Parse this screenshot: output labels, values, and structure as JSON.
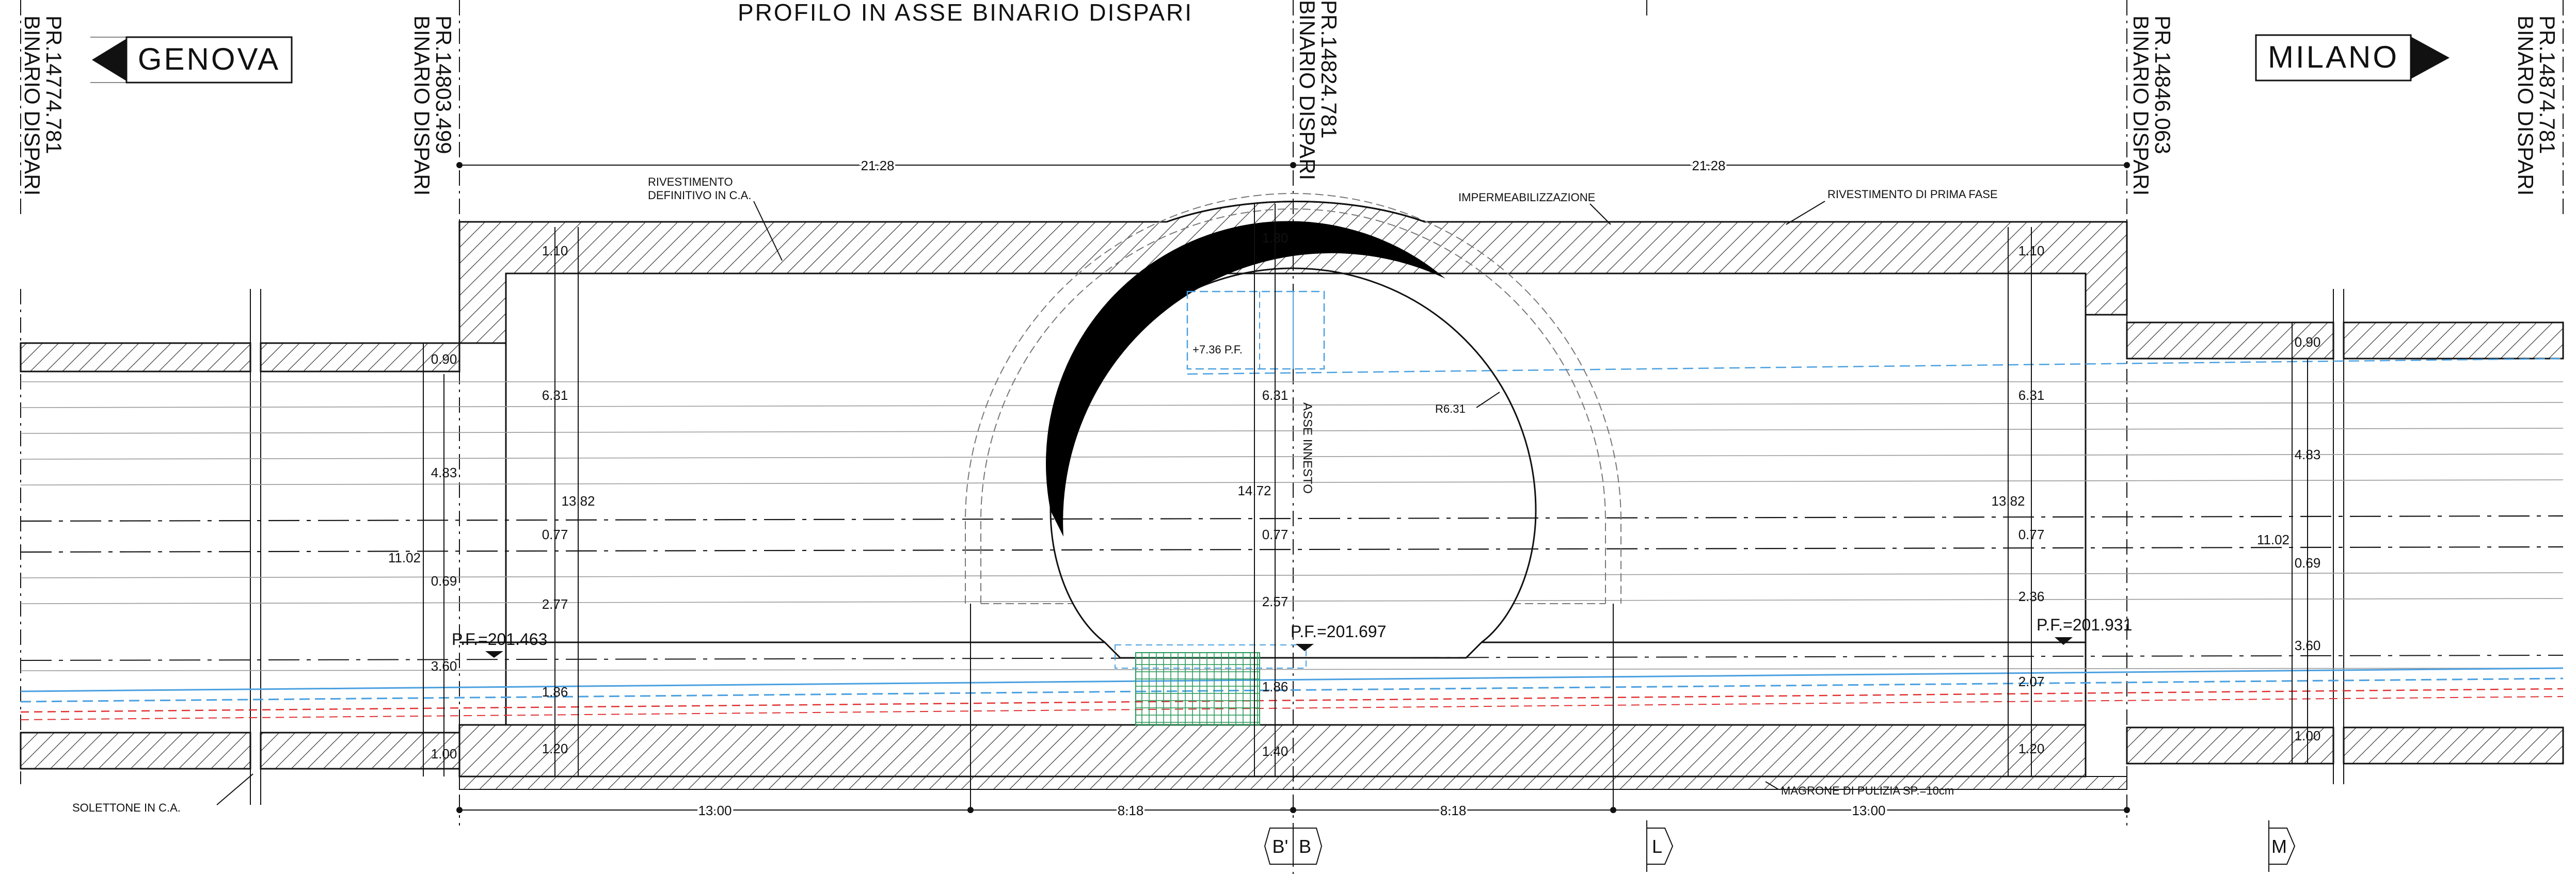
{
  "title": "PROFILO IN ASSE BINARIO DISPARI",
  "directions": {
    "left": "GENOVA",
    "right": "MILANO"
  },
  "stations": [
    {
      "pr": "PR.14774.781",
      "track": "BINARIO DISPARI"
    },
    {
      "pr": "PR.14803.499",
      "track": "BINARIO DISPARI"
    },
    {
      "pr": "PR.14824.781",
      "track": "BINARIO DISPARI"
    },
    {
      "pr": "PR.14846.063",
      "track": "BINARIO DISPARI"
    },
    {
      "pr": "PR.14874.781",
      "track": "BINARIO DISPARI"
    }
  ],
  "labels": {
    "rivestimento_def_1": "RIVESTIMENTO",
    "rivestimento_def_2": "DEFINITIVO IN C.A.",
    "impermeabilizzazione": "IMPERMEABILIZZAZIONE",
    "rivestimento_prima": "RIVESTIMENTO DI PRIMA FASE",
    "solettone": "SOLETTONE IN C.A.",
    "magrone": "MAGRONE DI PULIZIA SP.=10cm",
    "asse_innesto": "ASSE INNESTO",
    "radius": "R6.31",
    "level_top": "+7.36 P.F."
  },
  "pf": {
    "left": "P.F.=201.463",
    "center": "P.F.=201.697",
    "right": "P.F.=201.931"
  },
  "dims": {
    "top_left": "21.28",
    "top_right": "21.28",
    "bot_1": "13.00",
    "bot_2": "8.18",
    "bot_3": "8.18",
    "bot_4": "13.00",
    "l_090": "0.90",
    "l_483": "4.83",
    "l_1102": "11.02",
    "l_069": "0.69",
    "l_360": "3.60",
    "l_100": "1.00",
    "a_110": "1.10",
    "a_631": "6.31",
    "a_1382": "13.82",
    "a_077": "0.77",
    "a_277": "2.77",
    "a_186": "1.86",
    "a_120": "1.20",
    "c_180": "1.80",
    "c_631": "6.31",
    "c_1472": "14.72",
    "c_077": "0.77",
    "c_257": "2.57",
    "c_186": "1.86",
    "c_140": "1.40",
    "d_110": "1.10",
    "d_631": "6.31",
    "d_1382": "13.82",
    "d_077": "0.77",
    "d_236": "2.36",
    "d_207": "2.07",
    "d_120": "1.20",
    "r_090": "0.90",
    "r_483": "4.83",
    "r_1102": "11.02",
    "r_069": "0.69",
    "r_360": "3.60",
    "r_100": "1.00"
  },
  "sections": {
    "b1": "B'",
    "b2": "B",
    "l": "L",
    "m": "M"
  }
}
